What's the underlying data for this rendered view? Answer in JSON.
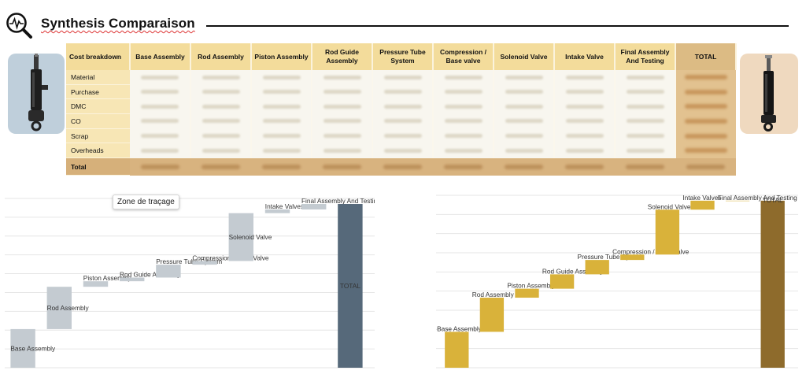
{
  "header": {
    "title": "Synthesis Comparaison",
    "icon": "search-analytics-icon"
  },
  "table": {
    "corner_label": "Cost breakdown",
    "columns": [
      "Base Assembly",
      "Rod Assembly",
      "Piston Assembly",
      "Rod Guide Assembly",
      "Pressure Tube System",
      "Compression / Base valve",
      "Solenoid Valve",
      "Intake Valve",
      "Final Assembly And Testing",
      "TOTAL"
    ],
    "rows": [
      "Material",
      "Purchase",
      "DMC",
      "CO",
      "Scrap",
      "Overheads"
    ],
    "total_row_label": "Total"
  },
  "tooltip": {
    "text": "Zone de traçage"
  },
  "chart_data": [
    {
      "type": "waterfall",
      "categories": [
        "Base Assembly",
        "Rod Assembly",
        "Piston Assembly",
        "Rod Guide Assembly",
        "Pressure Tube System",
        "Compression / Base Valve",
        "Solenoid Valve",
        "Intake Valves",
        "Final Assembly And Testing",
        "TOTAL"
      ],
      "values": [
        10.5,
        11.5,
        1.5,
        1,
        3.5,
        1,
        13,
        1,
        1.5,
        44.5
      ],
      "ylim": [
        0,
        46
      ],
      "grid": true,
      "colors": {
        "step": "#c4cbd1",
        "total": "#56697a"
      }
    },
    {
      "type": "waterfall",
      "categories": [
        "Base Assembly",
        "Rod Assembly",
        "Piston Assembly",
        "Rod Guide Assembly",
        "Pressure Tube System",
        "Compression / Base Valve",
        "Solenoid Valve",
        "Intake Valves",
        "Final Assembly And Testing",
        "TOTAL"
      ],
      "values": [
        10,
        9.5,
        2.5,
        4,
        4,
        1.5,
        12.5,
        2.5,
        0,
        46.5
      ],
      "ylim": [
        0,
        48
      ],
      "grid": true,
      "colors": {
        "step": "#d9b23a",
        "total": "#8e6b2c"
      }
    }
  ]
}
